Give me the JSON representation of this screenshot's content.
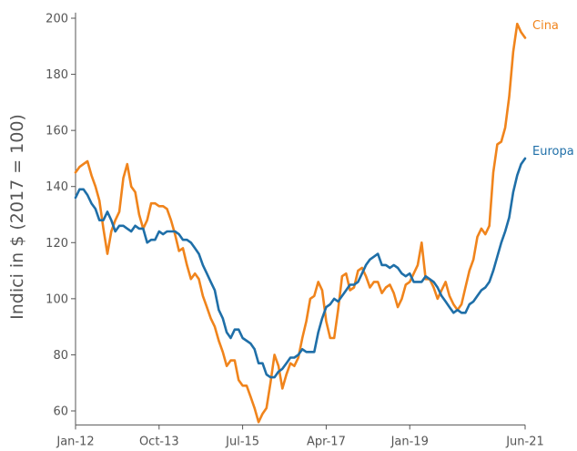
{
  "chart_data": {
    "type": "line",
    "ylabel": "Indici in $ (2017 = 100)",
    "xlabel": "",
    "x_start": "2012-01",
    "x_end": "2021-06",
    "xticks": [
      {
        "date": "2012-01",
        "label": "Jan-12"
      },
      {
        "date": "2013-10",
        "label": "Oct-13"
      },
      {
        "date": "2015-07",
        "label": "Jul-15"
      },
      {
        "date": "2017-04",
        "label": "Apr-17"
      },
      {
        "date": "2019-01",
        "label": "Jan-19"
      },
      {
        "date": "2021-06",
        "label": "Jun-21"
      }
    ],
    "ylim": [
      55,
      202
    ],
    "yticks": [
      60,
      80,
      100,
      120,
      140,
      160,
      180,
      200
    ],
    "grid": false,
    "series": [
      {
        "name": "Cina",
        "color": "#f0841c",
        "points": [
          [
            "2012-01",
            145
          ],
          [
            "2012-02",
            147
          ],
          [
            "2012-03",
            148
          ],
          [
            "2012-04",
            149
          ],
          [
            "2012-05",
            144
          ],
          [
            "2012-06",
            140
          ],
          [
            "2012-07",
            135
          ],
          [
            "2012-08",
            125
          ],
          [
            "2012-09",
            116
          ],
          [
            "2012-10",
            124
          ],
          [
            "2012-11",
            128
          ],
          [
            "2012-12",
            131
          ],
          [
            "2013-01",
            143
          ],
          [
            "2013-02",
            148
          ],
          [
            "2013-03",
            140
          ],
          [
            "2013-04",
            138
          ],
          [
            "2013-05",
            130
          ],
          [
            "2013-06",
            125
          ],
          [
            "2013-07",
            128
          ],
          [
            "2013-08",
            134
          ],
          [
            "2013-09",
            134
          ],
          [
            "2013-10",
            133
          ],
          [
            "2013-11",
            133
          ],
          [
            "2013-12",
            132
          ],
          [
            "2014-01",
            128
          ],
          [
            "2014-02",
            123
          ],
          [
            "2014-03",
            117
          ],
          [
            "2014-04",
            118
          ],
          [
            "2014-05",
            112
          ],
          [
            "2014-06",
            107
          ],
          [
            "2014-07",
            109
          ],
          [
            "2014-08",
            107
          ],
          [
            "2014-09",
            101
          ],
          [
            "2014-10",
            97
          ],
          [
            "2014-11",
            93
          ],
          [
            "2014-12",
            90
          ],
          [
            "2015-01",
            85
          ],
          [
            "2015-02",
            81
          ],
          [
            "2015-03",
            76
          ],
          [
            "2015-04",
            78
          ],
          [
            "2015-05",
            78
          ],
          [
            "2015-06",
            71
          ],
          [
            "2015-07",
            69
          ],
          [
            "2015-08",
            69
          ],
          [
            "2015-09",
            65
          ],
          [
            "2015-10",
            61
          ],
          [
            "2015-11",
            56
          ],
          [
            "2015-12",
            59
          ],
          [
            "2016-01",
            61
          ],
          [
            "2016-02",
            70
          ],
          [
            "2016-03",
            80
          ],
          [
            "2016-04",
            76
          ],
          [
            "2016-05",
            68
          ],
          [
            "2016-06",
            73
          ],
          [
            "2016-07",
            77
          ],
          [
            "2016-08",
            76
          ],
          [
            "2016-09",
            79
          ],
          [
            "2016-10",
            86
          ],
          [
            "2016-11",
            92
          ],
          [
            "2016-12",
            100
          ],
          [
            "2017-01",
            101
          ],
          [
            "2017-02",
            106
          ],
          [
            "2017-03",
            103
          ],
          [
            "2017-04",
            92
          ],
          [
            "2017-05",
            86
          ],
          [
            "2017-06",
            86
          ],
          [
            "2017-07",
            96
          ],
          [
            "2017-08",
            108
          ],
          [
            "2017-09",
            109
          ],
          [
            "2017-10",
            103
          ],
          [
            "2017-11",
            104
          ],
          [
            "2017-12",
            110
          ],
          [
            "2018-01",
            111
          ],
          [
            "2018-02",
            108
          ],
          [
            "2018-03",
            104
          ],
          [
            "2018-04",
            106
          ],
          [
            "2018-05",
            106
          ],
          [
            "2018-06",
            102
          ],
          [
            "2018-07",
            104
          ],
          [
            "2018-08",
            105
          ],
          [
            "2018-09",
            102
          ],
          [
            "2018-10",
            97
          ],
          [
            "2018-11",
            100
          ],
          [
            "2018-12",
            105
          ],
          [
            "2019-01",
            106
          ],
          [
            "2019-02",
            109
          ],
          [
            "2019-03",
            112
          ],
          [
            "2019-04",
            120
          ],
          [
            "2019-05",
            107
          ],
          [
            "2019-06",
            107
          ],
          [
            "2019-07",
            104
          ],
          [
            "2019-08",
            100
          ],
          [
            "2019-09",
            103
          ],
          [
            "2019-10",
            106
          ],
          [
            "2019-11",
            101
          ],
          [
            "2019-12",
            98
          ],
          [
            "2020-01",
            96
          ],
          [
            "2020-02",
            98
          ],
          [
            "2020-03",
            104
          ],
          [
            "2020-04",
            110
          ],
          [
            "2020-05",
            114
          ],
          [
            "2020-06",
            122
          ],
          [
            "2020-07",
            125
          ],
          [
            "2020-08",
            123
          ],
          [
            "2020-09",
            126
          ],
          [
            "2020-10",
            145
          ],
          [
            "2020-11",
            155
          ],
          [
            "2020-12",
            156
          ],
          [
            "2021-01",
            161
          ],
          [
            "2021-02",
            172
          ],
          [
            "2021-03",
            188
          ],
          [
            "2021-04",
            198
          ],
          [
            "2021-05",
            195
          ],
          [
            "2021-06",
            193
          ]
        ]
      },
      {
        "name": "Europa",
        "color": "#1f6fa8",
        "points": [
          [
            "2012-01",
            136
          ],
          [
            "2012-02",
            139
          ],
          [
            "2012-03",
            139
          ],
          [
            "2012-04",
            137
          ],
          [
            "2012-05",
            134
          ],
          [
            "2012-06",
            132
          ],
          [
            "2012-07",
            128
          ],
          [
            "2012-08",
            128
          ],
          [
            "2012-09",
            131
          ],
          [
            "2012-10",
            128
          ],
          [
            "2012-11",
            124
          ],
          [
            "2012-12",
            126
          ],
          [
            "2013-01",
            126
          ],
          [
            "2013-02",
            125
          ],
          [
            "2013-03",
            124
          ],
          [
            "2013-04",
            126
          ],
          [
            "2013-05",
            125
          ],
          [
            "2013-06",
            125
          ],
          [
            "2013-07",
            120
          ],
          [
            "2013-08",
            121
          ],
          [
            "2013-09",
            121
          ],
          [
            "2013-10",
            124
          ],
          [
            "2013-11",
            123
          ],
          [
            "2013-12",
            124
          ],
          [
            "2014-01",
            124
          ],
          [
            "2014-02",
            124
          ],
          [
            "2014-03",
            123
          ],
          [
            "2014-04",
            121
          ],
          [
            "2014-05",
            121
          ],
          [
            "2014-06",
            120
          ],
          [
            "2014-07",
            118
          ],
          [
            "2014-08",
            116
          ],
          [
            "2014-09",
            112
          ],
          [
            "2014-10",
            109
          ],
          [
            "2014-11",
            106
          ],
          [
            "2014-12",
            103
          ],
          [
            "2015-01",
            96
          ],
          [
            "2015-02",
            93
          ],
          [
            "2015-03",
            88
          ],
          [
            "2015-04",
            86
          ],
          [
            "2015-05",
            89
          ],
          [
            "2015-06",
            89
          ],
          [
            "2015-07",
            86
          ],
          [
            "2015-08",
            85
          ],
          [
            "2015-09",
            84
          ],
          [
            "2015-10",
            82
          ],
          [
            "2015-11",
            77
          ],
          [
            "2015-12",
            77
          ],
          [
            "2016-01",
            73
          ],
          [
            "2016-02",
            72
          ],
          [
            "2016-03",
            72
          ],
          [
            "2016-04",
            74
          ],
          [
            "2016-05",
            75
          ],
          [
            "2016-06",
            77
          ],
          [
            "2016-07",
            79
          ],
          [
            "2016-08",
            79
          ],
          [
            "2016-09",
            80
          ],
          [
            "2016-10",
            82
          ],
          [
            "2016-11",
            81
          ],
          [
            "2016-12",
            81
          ],
          [
            "2017-01",
            81
          ],
          [
            "2017-02",
            88
          ],
          [
            "2017-03",
            93
          ],
          [
            "2017-04",
            97
          ],
          [
            "2017-05",
            98
          ],
          [
            "2017-06",
            100
          ],
          [
            "2017-07",
            99
          ],
          [
            "2017-08",
            101
          ],
          [
            "2017-09",
            103
          ],
          [
            "2017-10",
            105
          ],
          [
            "2017-11",
            105
          ],
          [
            "2017-12",
            106
          ],
          [
            "2018-01",
            109
          ],
          [
            "2018-02",
            112
          ],
          [
            "2018-03",
            114
          ],
          [
            "2018-04",
            115
          ],
          [
            "2018-05",
            116
          ],
          [
            "2018-06",
            112
          ],
          [
            "2018-07",
            112
          ],
          [
            "2018-08",
            111
          ],
          [
            "2018-09",
            112
          ],
          [
            "2018-10",
            111
          ],
          [
            "2018-11",
            109
          ],
          [
            "2018-12",
            108
          ],
          [
            "2019-01",
            109
          ],
          [
            "2019-02",
            106
          ],
          [
            "2019-03",
            106
          ],
          [
            "2019-04",
            106
          ],
          [
            "2019-05",
            108
          ],
          [
            "2019-06",
            107
          ],
          [
            "2019-07",
            106
          ],
          [
            "2019-08",
            104
          ],
          [
            "2019-09",
            101
          ],
          [
            "2019-10",
            99
          ],
          [
            "2019-11",
            97
          ],
          [
            "2019-12",
            95
          ],
          [
            "2020-01",
            96
          ],
          [
            "2020-02",
            95
          ],
          [
            "2020-03",
            95
          ],
          [
            "2020-04",
            98
          ],
          [
            "2020-05",
            99
          ],
          [
            "2020-06",
            101
          ],
          [
            "2020-07",
            103
          ],
          [
            "2020-08",
            104
          ],
          [
            "2020-09",
            106
          ],
          [
            "2020-10",
            110
          ],
          [
            "2020-11",
            115
          ],
          [
            "2020-12",
            120
          ],
          [
            "2021-01",
            124
          ],
          [
            "2021-02",
            129
          ],
          [
            "2021-03",
            138
          ],
          [
            "2021-04",
            144
          ],
          [
            "2021-05",
            148
          ],
          [
            "2021-06",
            150
          ]
        ]
      }
    ]
  }
}
